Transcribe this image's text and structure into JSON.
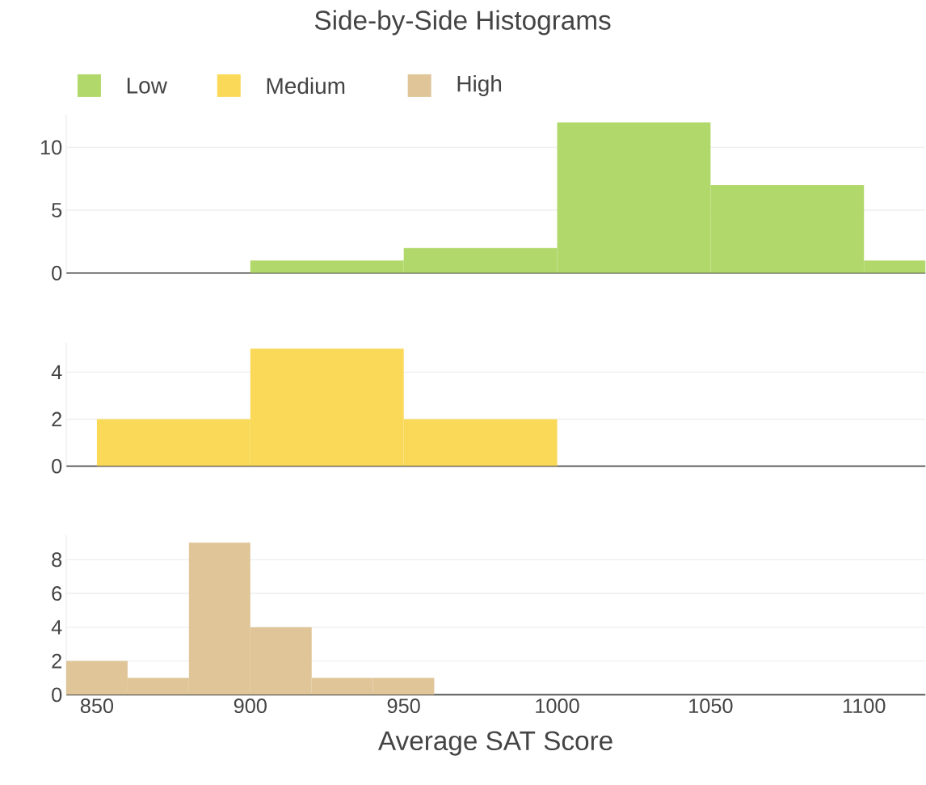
{
  "chart_data": [
    {
      "type": "histogram",
      "title": "Side-by-Side Histograms",
      "bins": [
        900,
        950,
        1000,
        1050,
        1100,
        1150
      ],
      "series": [
        {
          "name": "Low",
          "color": "#b1d86a",
          "values": [
            1,
            2,
            12,
            7,
            1
          ]
        }
      ],
      "xlim": [
        840,
        1120
      ],
      "xticks": [
        850,
        900,
        950,
        1000,
        1050,
        1100
      ],
      "ylim": [
        0,
        12.6
      ],
      "yticks": [
        0,
        5,
        10
      ],
      "grid": "y",
      "legend": "top",
      "tick_labels": "y"
    },
    {
      "type": "histogram",
      "bins": [
        850,
        900,
        950,
        1000
      ],
      "series": [
        {
          "name": "Medium",
          "color": "#f9d957",
          "values": [
            2,
            5,
            2
          ]
        }
      ],
      "xlim": [
        840,
        1120
      ],
      "xticks": [
        850,
        900,
        950,
        1000,
        1050,
        1100
      ],
      "ylim": [
        0,
        5.26
      ],
      "yticks": [
        0,
        2,
        4
      ],
      "grid": "y",
      "legend": "top",
      "tick_labels": "y"
    },
    {
      "type": "histogram",
      "xlabel": "Average SAT Score",
      "bins": [
        840,
        860,
        880,
        900,
        920,
        940,
        960
      ],
      "series": [
        {
          "name": "High",
          "color": "#dfc598",
          "values": [
            2,
            1,
            9,
            4,
            1,
            1
          ]
        }
      ],
      "xlim": [
        840,
        1120
      ],
      "xticks": [
        850,
        900,
        950,
        1000,
        1050,
        1100
      ],
      "ylim": [
        0,
        9.47
      ],
      "yticks": [
        0,
        2,
        4,
        6,
        8
      ],
      "grid": "y",
      "legend": "top"
    }
  ]
}
